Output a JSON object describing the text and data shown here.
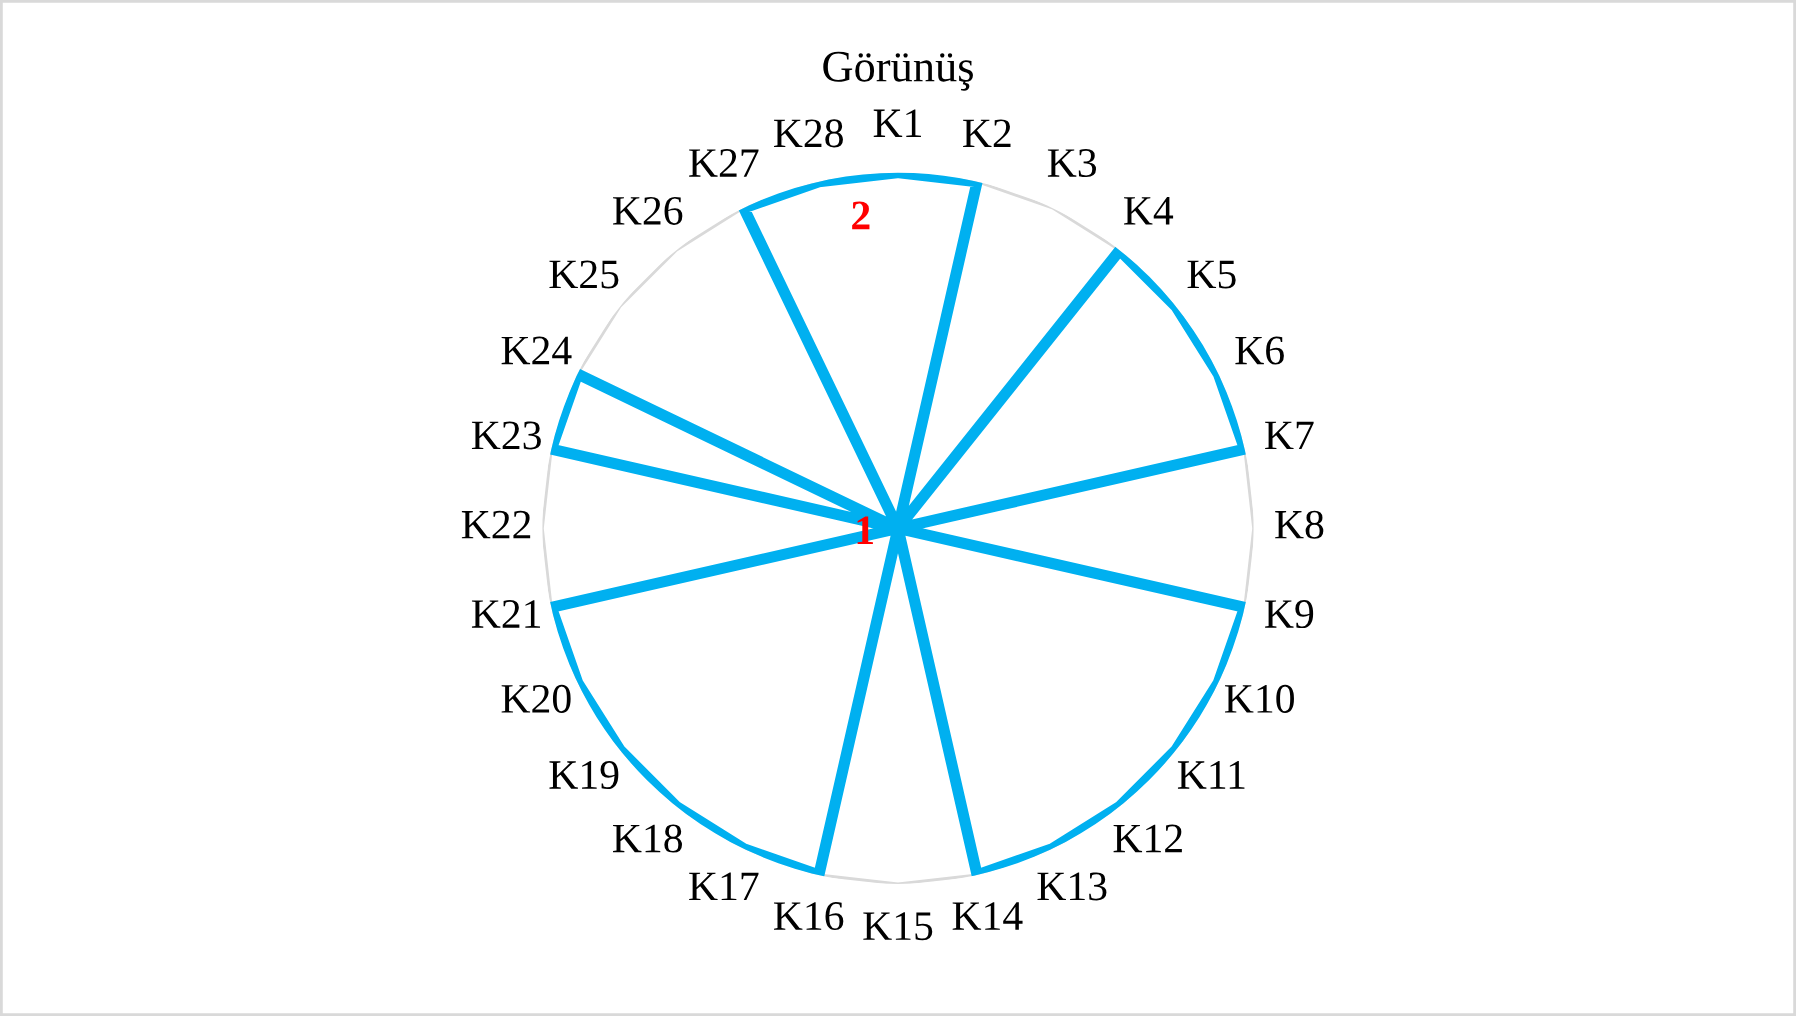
{
  "chart_data": {
    "type": "radar",
    "title": "Görünüş",
    "categories": [
      "K1",
      "K2",
      "K3",
      "K4",
      "K5",
      "K6",
      "K7",
      "K8",
      "K9",
      "K10",
      "K11",
      "K12",
      "K13",
      "K14",
      "K15",
      "K16",
      "K17",
      "K18",
      "K19",
      "K20",
      "K21",
      "K22",
      "K23",
      "K24",
      "K25",
      "K26",
      "K27",
      "K28"
    ],
    "series": [
      {
        "color": "#00b0f0",
        "values": [
          2,
          2,
          1,
          2,
          2,
          2,
          2,
          1,
          2,
          2,
          2,
          2,
          2,
          2,
          1,
          2,
          2,
          2,
          2,
          2,
          2,
          1,
          2,
          2,
          1,
          1,
          2,
          2
        ]
      }
    ],
    "ylim": [
      1,
      2
    ],
    "yticks": [
      1,
      2
    ],
    "grid": true,
    "marker": "none",
    "line_style": "solid"
  }
}
